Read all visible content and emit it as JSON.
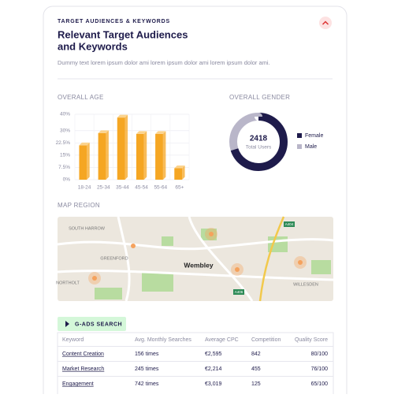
{
  "header": {
    "label": "TARGET AUDIENCES & KEYWORDS",
    "title_lines": [
      "Relevant Target Audiences",
      "and Keywords"
    ],
    "description": "Dummy text lorem ipsum dolor ami lorem ipsum dolor ami lorem ipsum dolor ami."
  },
  "age": {
    "section_title": "OVERALL AGE",
    "chart_data": {
      "type": "bar",
      "categories": [
        "18-24",
        "25-34",
        "35-44",
        "45-54",
        "55-64",
        "65+"
      ],
      "values": [
        21,
        28.5,
        38,
        28,
        28,
        7
      ],
      "color": "#f5a623",
      "ylim": [
        0,
        40
      ],
      "yticks": [
        {
          "value": 0,
          "label": "0%"
        },
        {
          "value": 7.5,
          "label": "7.5%"
        },
        {
          "value": 15,
          "label": "15%"
        },
        {
          "value": 22.5,
          "label": "22.5%"
        },
        {
          "value": 30,
          "label": "30%"
        },
        {
          "value": 40,
          "label": "40%"
        }
      ],
      "grid": true
    }
  },
  "gender": {
    "section_title": "OVERALL GENDER",
    "chart_data": {
      "type": "donut",
      "total": "2418",
      "total_label": "Total Users",
      "series": [
        {
          "name": "Female",
          "color": "#1e1b4b",
          "value": 70
        },
        {
          "name": "Male",
          "color": "#b9b6c9",
          "value": 30
        }
      ]
    }
  },
  "map": {
    "section_title": "MAP REGION",
    "labels": [
      "SOUTH HARROW",
      "GREENFORD",
      "Wembley",
      "NORTHOLT",
      "WILLESDEN"
    ],
    "roads": [
      "A404",
      "A406"
    ]
  },
  "table": {
    "button": "G-ADS SEARCH",
    "headers": [
      "Keyword",
      "Avg. Monthly Searches",
      "Average CPC",
      "Competition",
      "Quality Score"
    ],
    "rows": [
      [
        "Content Creation",
        "156 times",
        "€2,595",
        "842",
        "80/100"
      ],
      [
        "Market Research",
        "245 times",
        "€2,214",
        "455",
        "76/100"
      ],
      [
        "Engagement",
        "742 times",
        "€3,019",
        "125",
        "65/100"
      ]
    ]
  }
}
